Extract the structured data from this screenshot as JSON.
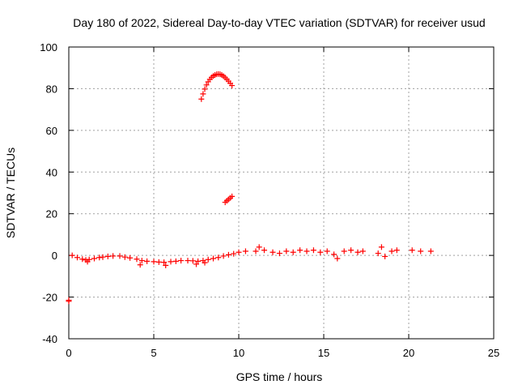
{
  "chart_data": {
    "type": "scatter",
    "title": "Day 180 of 2022, Sidereal Day-to-day VTEC variation (SDTVAR) for receiver usud",
    "xlabel": "GPS time / hours",
    "ylabel": "SDTVAR / TECUs",
    "xlim": [
      0,
      25
    ],
    "ylim": [
      -40,
      100
    ],
    "xticks": [
      0,
      5,
      10,
      15,
      20,
      25
    ],
    "yticks": [
      -40,
      -20,
      0,
      20,
      40,
      60,
      80,
      100
    ],
    "xtick_labels": [
      "0",
      "5",
      "10",
      "15",
      "20",
      "25"
    ],
    "ytick_labels": [
      "-40",
      "-20",
      "0",
      "20",
      "40",
      "60",
      "80",
      "100"
    ],
    "grid": true,
    "marker": "+",
    "color": "#ff0000",
    "series": [
      {
        "name": "SDTVAR",
        "points": [
          [
            0.0,
            -21.5
          ],
          [
            0.0,
            -22.0
          ],
          [
            0.2,
            0.0
          ],
          [
            0.5,
            -1.0
          ],
          [
            0.8,
            -1.8
          ],
          [
            1.0,
            -2.2
          ],
          [
            1.2,
            -2.0
          ],
          [
            1.5,
            -1.5
          ],
          [
            1.8,
            -1.0
          ],
          [
            2.0,
            -0.8
          ],
          [
            2.3,
            -0.5
          ],
          [
            2.6,
            -0.3
          ],
          [
            3.0,
            -0.3
          ],
          [
            3.3,
            -0.8
          ],
          [
            3.6,
            -1.2
          ],
          [
            4.0,
            -1.8
          ],
          [
            4.3,
            -2.5
          ],
          [
            4.6,
            -2.8
          ],
          [
            5.0,
            -3.0
          ],
          [
            5.3,
            -3.2
          ],
          [
            5.6,
            -3.3
          ],
          [
            6.0,
            -3.0
          ],
          [
            6.3,
            -2.8
          ],
          [
            6.6,
            -2.5
          ],
          [
            7.0,
            -2.5
          ],
          [
            7.3,
            -2.6
          ],
          [
            7.6,
            -2.8
          ],
          [
            7.9,
            -2.5
          ],
          [
            8.2,
            -2.0
          ],
          [
            8.5,
            -1.5
          ],
          [
            8.8,
            -1.0
          ],
          [
            9.1,
            -0.3
          ],
          [
            9.4,
            0.3
          ],
          [
            9.7,
            0.8
          ],
          [
            4.2,
            -4.5
          ],
          [
            5.7,
            -4.8
          ],
          [
            7.5,
            -4.2
          ],
          [
            1.1,
            -3.0
          ],
          [
            8.0,
            -3.5
          ],
          [
            7.8,
            75.0
          ],
          [
            7.9,
            77.5
          ],
          [
            8.0,
            79.8
          ],
          [
            8.1,
            81.8
          ],
          [
            8.2,
            83.3
          ],
          [
            8.3,
            84.5
          ],
          [
            8.4,
            85.4
          ],
          [
            8.5,
            86.1
          ],
          [
            8.6,
            86.6
          ],
          [
            8.7,
            86.9
          ],
          [
            8.8,
            87.0
          ],
          [
            8.9,
            86.9
          ],
          [
            9.0,
            86.6
          ],
          [
            9.1,
            86.0
          ],
          [
            9.2,
            85.3
          ],
          [
            9.3,
            84.5
          ],
          [
            9.4,
            83.6
          ],
          [
            9.5,
            82.6
          ],
          [
            9.6,
            81.5
          ],
          [
            9.2,
            25.5
          ],
          [
            9.3,
            26.2
          ],
          [
            9.4,
            26.9
          ],
          [
            9.5,
            27.6
          ],
          [
            9.6,
            28.3
          ],
          [
            10.0,
            1.5
          ],
          [
            10.4,
            2.0
          ],
          [
            11.0,
            2.0
          ],
          [
            11.2,
            4.0
          ],
          [
            11.5,
            2.5
          ],
          [
            12.0,
            1.5
          ],
          [
            12.4,
            1.0
          ],
          [
            12.8,
            2.0
          ],
          [
            13.2,
            1.5
          ],
          [
            13.6,
            2.5
          ],
          [
            14.0,
            2.0
          ],
          [
            14.4,
            2.5
          ],
          [
            14.8,
            1.5
          ],
          [
            15.2,
            2.0
          ],
          [
            15.6,
            0.5
          ],
          [
            15.8,
            -1.5
          ],
          [
            16.2,
            2.0
          ],
          [
            16.6,
            2.5
          ],
          [
            17.0,
            1.5
          ],
          [
            17.3,
            2.0
          ],
          [
            18.2,
            1.0
          ],
          [
            18.4,
            4.0
          ],
          [
            18.6,
            -0.5
          ],
          [
            19.0,
            2.0
          ],
          [
            19.3,
            2.5
          ],
          [
            20.2,
            2.5
          ],
          [
            20.7,
            2.0
          ],
          [
            21.3,
            2.0
          ]
        ]
      }
    ]
  }
}
